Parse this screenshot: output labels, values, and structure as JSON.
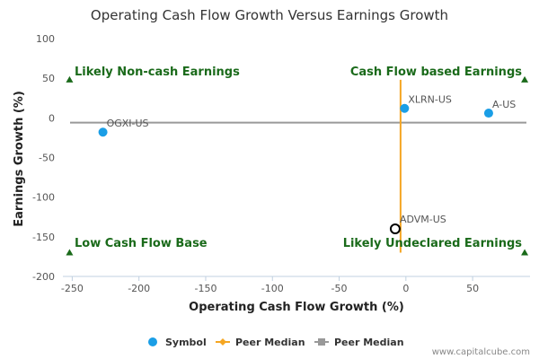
{
  "chart_data": {
    "type": "scatter",
    "title": "Operating Cash Flow Growth Versus Earnings Growth",
    "xlabel": "Operating Cash Flow Growth (%)",
    "ylabel": "Earnings Growth (%)",
    "xlim": [
      -257,
      93
    ],
    "ylim": [
      -200,
      100
    ],
    "xticks": [
      -250,
      -200,
      -150,
      -100,
      -50,
      0,
      50
    ],
    "yticks": [
      100,
      50,
      0,
      -50,
      -100,
      -150,
      -200
    ],
    "grid": false,
    "legend_position": "bottom",
    "points": [
      {
        "label": "OGXI-US",
        "x": -227,
        "y": -18,
        "style": "symbol"
      },
      {
        "label": "XLRN-US",
        "x": -1,
        "y": 12,
        "style": "symbol"
      },
      {
        "label": "A-US",
        "x": 62,
        "y": 6,
        "style": "symbol"
      },
      {
        "label": "ADVM-US",
        "x": -8,
        "y": -140,
        "style": "highlight"
      }
    ],
    "peer_median": {
      "x": -4,
      "y": -6
    },
    "quadrant_labels": [
      {
        "text": "Likely Non-cash Earnings",
        "position": "top-left"
      },
      {
        "text": "Cash Flow based Earnings",
        "position": "top-right"
      },
      {
        "text": "Low Cash Flow Base",
        "position": "bottom-left"
      },
      {
        "text": "Likely Undeclared Earnings",
        "position": "bottom-right"
      }
    ],
    "legend": [
      {
        "text": "Symbol",
        "marker": "circle",
        "color": "#1a9ee6"
      },
      {
        "text": "Peer Median",
        "marker": "diamond-line",
        "color": "#f5a623"
      },
      {
        "text": "Peer Median",
        "marker": "square-line",
        "color": "#999999"
      }
    ],
    "colors": {
      "symbol": "#1a9ee6",
      "vertical_median": "#f5a623",
      "horizontal_median": "#999999",
      "quadrant": "#1a6a1a"
    }
  },
  "credit": "www.capitalcube.com"
}
